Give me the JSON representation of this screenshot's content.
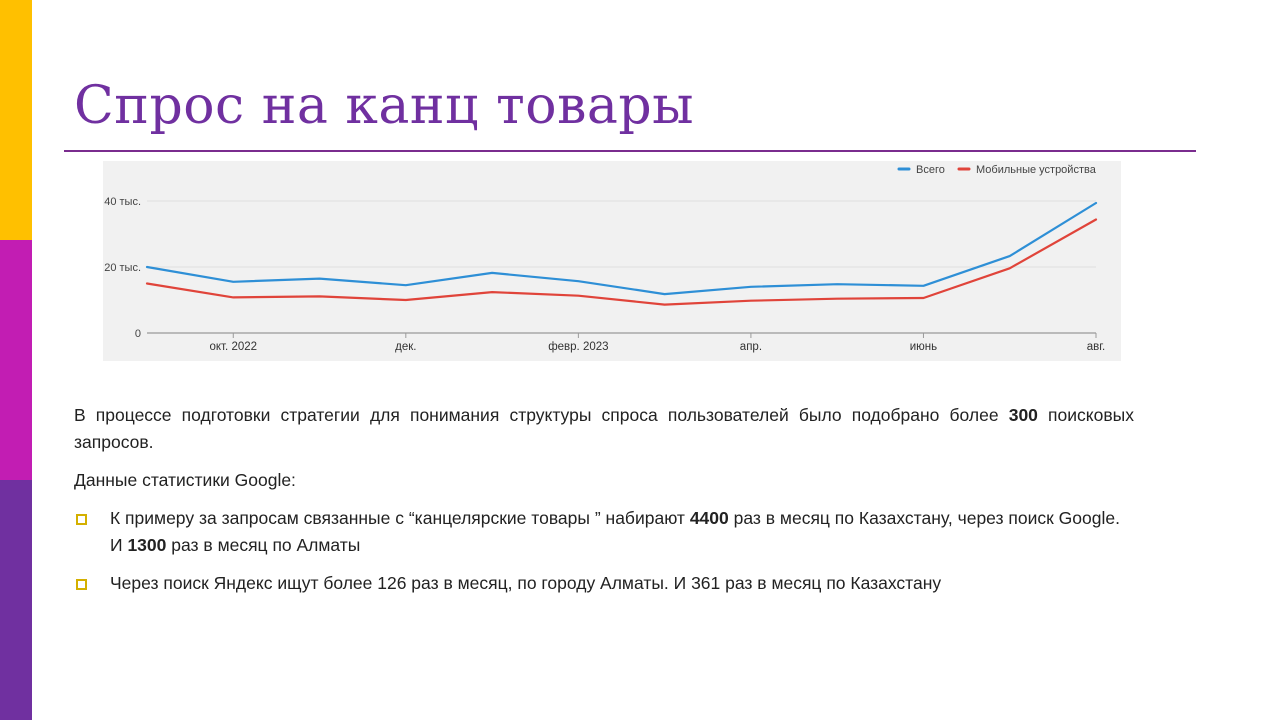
{
  "slide": {
    "title": "Спрос на канц товары",
    "accent_colors": {
      "bar_top": "#FFC000",
      "bar_middle": "#C21DB3",
      "bar_bottom": "#7030A0",
      "title": "#7030A0",
      "bullet": "#D4B000"
    }
  },
  "chart_data": {
    "type": "line",
    "y_ticks": [
      {
        "value": 0,
        "label": "0"
      },
      {
        "value": 20000,
        "label": "20 тыс."
      },
      {
        "value": 40000,
        "label": "40 тыс."
      }
    ],
    "x_ticks": [
      {
        "index": 1,
        "label": "окт. 2022"
      },
      {
        "index": 3,
        "label": "дек."
      },
      {
        "index": 5,
        "label": "февр. 2023"
      },
      {
        "index": 7,
        "label": "апр."
      },
      {
        "index": 9,
        "label": "июнь"
      },
      {
        "index": 11,
        "label": "авг."
      }
    ],
    "x_count": 12,
    "ylim": [
      0,
      40000
    ],
    "grid": true,
    "legend_position": "top-right",
    "series": [
      {
        "name": "Всего",
        "color": "#2E8FD6",
        "values": [
          20000,
          15500,
          16500,
          14500,
          18200,
          15700,
          11800,
          14000,
          14800,
          14300,
          23300,
          39400
        ]
      },
      {
        "name": "Мобильные устройства",
        "color": "#E0443A",
        "values": [
          15000,
          10800,
          11100,
          10000,
          12400,
          11300,
          8600,
          9800,
          10400,
          10600,
          19600,
          34400
        ]
      }
    ]
  },
  "text": {
    "para1_pre": "В процессе подготовки стратегии для понимания структуры спроса пользователей было подобрано более ",
    "para1_bold": "300",
    "para1_post": " поисковых запросов.",
    "para2": "Данные статистики Google:",
    "bullet1_a": "К примеру за запросам связанные с “канцелярские товары ” набирают ",
    "bullet1_b1": "4400",
    "bullet1_c": " раз в месяц по Казахстану, через поиск Google. И ",
    "bullet1_b2": "1300",
    "bullet1_d": " раз в месяц по Алматы",
    "bullet2": "Через поиск Яндекс ищут более 126 раз в месяц, по городу Алматы. И 361 раз в месяц по Казахстану"
  }
}
